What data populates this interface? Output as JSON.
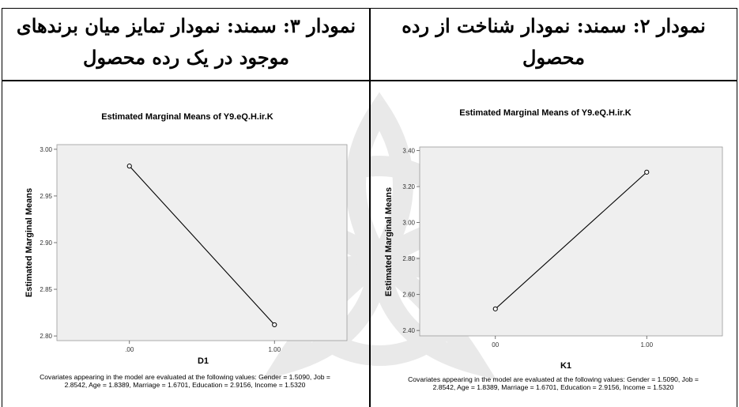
{
  "headers": {
    "left": "نمودار ۳: سمند: نمودار تمایز میان برندهای موجود در یک رده محصول",
    "right": "نمودار ۲: سمند: نمودار شناخت از رده محصول"
  },
  "chart_data": [
    {
      "type": "line",
      "title": "Estimated Marginal Means of Y9.eQ.H.ir.K",
      "xlabel": "D1",
      "ylabel": "Estimated Marginal Means",
      "categories": [
        ".00",
        "1.00"
      ],
      "values": [
        2.982,
        2.812
      ],
      "ylim": [
        2.795,
        3.005
      ],
      "yticks": [
        "3.00",
        "2.95",
        "2.90",
        "2.85",
        "2.80"
      ],
      "ytick_values": [
        3.0,
        2.95,
        2.9,
        2.85,
        2.8
      ],
      "grid": false,
      "note": "Covariates appearing in the model are evaluated at the following values: Gender = 1.5090, Job = 2.8542, Age = 1.8389, Marriage = 1.6701, Education = 2.9156, Income = 1.5320"
    },
    {
      "type": "line",
      "title": "Estimated Marginal Means of Y9.eQ.H.ir.K",
      "xlabel": "K1",
      "ylabel": "Estimated Marginal Means",
      "categories": [
        "00",
        "1.00"
      ],
      "values": [
        2.52,
        3.28
      ],
      "ylim": [
        2.37,
        3.42
      ],
      "yticks": [
        "3.40",
        "3.20",
        "3.00",
        "2.80",
        "2.60",
        "2.40"
      ],
      "ytick_values": [
        3.4,
        3.2,
        3.0,
        2.8,
        2.6,
        2.4
      ],
      "grid": false,
      "note": "Covariates appearing in the model are evaluated at the following values: Gender = 1.5090, Job = 2.8542, Age = 1.8389, Marriage = 1.6701, Education = 2.9156, Income = 1.5320"
    }
  ]
}
